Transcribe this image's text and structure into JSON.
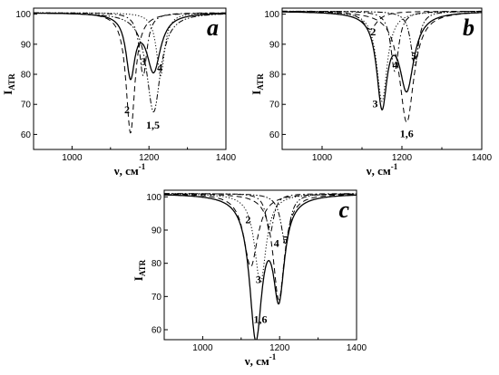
{
  "chart_data": [
    {
      "type": "line",
      "panel": "a",
      "xlim": [
        900,
        1400
      ],
      "ylim": [
        55,
        102
      ],
      "xticks": [
        1000,
        1200,
        1400
      ],
      "yticks": [
        60,
        70,
        80,
        90,
        100
      ],
      "xlabel": "ν, см",
      "xlabel_sup": "-1",
      "ylabel": "I",
      "ylabel_sub": "ATR",
      "baseline": 100.5,
      "series": [
        {
          "name": "1",
          "style": "solid",
          "dips": [
            [
              1152,
              20,
              14
            ],
            [
              1212,
              19,
              22
            ]
          ]
        },
        {
          "name": "2",
          "style": "dashed",
          "dips": [
            [
              1152,
              40,
              14
            ]
          ]
        },
        {
          "name": "3",
          "style": "dashdot",
          "dips": [
            [
              1185,
              21,
              12
            ]
          ]
        },
        {
          "name": "4",
          "style": "dotted",
          "dips": [
            [
              1230,
              21,
              13
            ]
          ]
        },
        {
          "name": "5",
          "style": "dashdotdot",
          "dips": [
            [
              1212,
              33,
              22
            ]
          ]
        }
      ],
      "annotations": [
        {
          "text": "2",
          "x": 1143,
          "y": 67
        },
        {
          "text": "3",
          "x": 1185,
          "y": 83
        },
        {
          "text": "4",
          "x": 1228,
          "y": 81
        },
        {
          "text": "1,5",
          "x": 1210,
          "y": 62
        }
      ],
      "grid": false,
      "legend": "none"
    },
    {
      "type": "line",
      "panel": "b",
      "xlim": [
        900,
        1400
      ],
      "ylim": [
        55,
        102
      ],
      "xticks": [
        1000,
        1200,
        1400
      ],
      "yticks": [
        60,
        70,
        80,
        90,
        100
      ],
      "xlabel": "ν, см",
      "xlabel_sup": "-1",
      "ylabel": "I",
      "ylabel_sub": "ATR",
      "baseline": 101,
      "series": [
        {
          "name": "1",
          "style": "solid",
          "dips": [
            [
              1150,
              30,
              16
            ],
            [
              1212,
              25,
              22
            ]
          ]
        },
        {
          "name": "2",
          "style": "dashed",
          "dips": [
            [
              1120,
              6,
              22
            ]
          ]
        },
        {
          "name": "3",
          "style": "dotted",
          "dips": [
            [
              1150,
              30,
              16
            ]
          ]
        },
        {
          "name": "4",
          "style": "dashdot",
          "dips": [
            [
              1182,
              20,
              12
            ]
          ]
        },
        {
          "name": "5",
          "style": "dashdotdot",
          "dips": [
            [
              1232,
              18,
              12
            ]
          ]
        },
        {
          "name": "6",
          "style": "dashed",
          "dips": [
            [
              1212,
              37,
              22
            ]
          ]
        }
      ],
      "annotations": [
        {
          "text": "2",
          "x": 1128,
          "y": 93
        },
        {
          "text": "3",
          "x": 1133,
          "y": 69
        },
        {
          "text": "4",
          "x": 1183,
          "y": 82
        },
        {
          "text": "5",
          "x": 1230,
          "y": 85
        },
        {
          "text": "1,6",
          "x": 1212,
          "y": 59
        }
      ],
      "grid": false,
      "legend": "none"
    },
    {
      "type": "line",
      "panel": "c",
      "xlim": [
        900,
        1400
      ],
      "ylim": [
        57,
        102
      ],
      "xticks": [
        1000,
        1200,
        1400
      ],
      "yticks": [
        60,
        70,
        80,
        90,
        100
      ],
      "xlabel": "ν, см",
      "xlabel_sup": "-1",
      "ylabel": "I",
      "ylabel_sub": "ATR",
      "baseline": 101,
      "series": [
        {
          "name": "1",
          "style": "solid",
          "dips": [
            [
              1138,
              42,
              20
            ],
            [
              1198,
              29,
              18
            ]
          ]
        },
        {
          "name": "2",
          "style": "dashed",
          "dips": [
            [
              1125,
              22,
              22
            ]
          ]
        },
        {
          "name": "3",
          "style": "dotted",
          "dips": [
            [
              1150,
              27,
              18
            ]
          ]
        },
        {
          "name": "4",
          "style": "dashdot",
          "dips": [
            [
              1175,
              12,
              12
            ]
          ]
        },
        {
          "name": "5",
          "style": "dashdotdot",
          "dips": [
            [
              1215,
              15,
              14
            ]
          ]
        },
        {
          "name": "6",
          "style": "dashed",
          "dips": [
            [
              1198,
              32,
              18
            ]
          ]
        }
      ],
      "annotations": [
        {
          "text": "2",
          "x": 1118,
          "y": 92
        },
        {
          "text": "3",
          "x": 1145,
          "y": 74
        },
        {
          "text": "4",
          "x": 1192,
          "y": 85
        },
        {
          "text": "5",
          "x": 1215,
          "y": 86
        },
        {
          "text": "1,6",
          "x": 1150,
          "y": 62
        }
      ],
      "grid": false,
      "legend": "none"
    }
  ]
}
